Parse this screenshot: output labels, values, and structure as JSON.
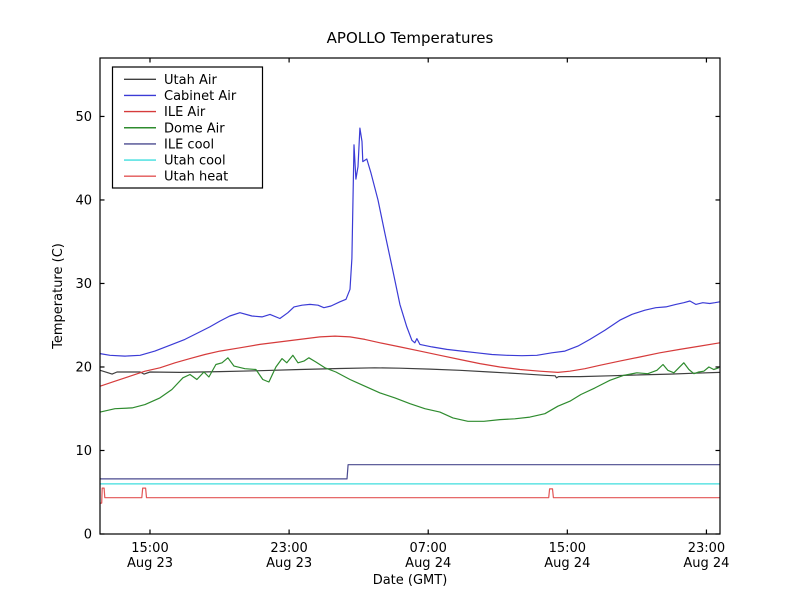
{
  "chart_data": {
    "type": "line",
    "title": "APOLLO Temperatures",
    "xlabel": "Date (GMT)",
    "ylabel": "Temperature (C)",
    "ylim": [
      0,
      57
    ],
    "xlim_hours": [
      12.125,
      47.78
    ],
    "x_unit": "hours since Aug 23 00:00 GMT",
    "grid": false,
    "legend_position": "upper left",
    "y_ticks": [
      {
        "value": 0,
        "label": "0"
      },
      {
        "value": 10,
        "label": "10"
      },
      {
        "value": 20,
        "label": "20"
      },
      {
        "value": 30,
        "label": "30"
      },
      {
        "value": 40,
        "label": "40"
      },
      {
        "value": 50,
        "label": "50"
      }
    ],
    "x_ticks": [
      {
        "hour": 15,
        "time": "15:00",
        "date": "Aug 23"
      },
      {
        "hour": 23,
        "time": "23:00",
        "date": "Aug 23"
      },
      {
        "hour": 31,
        "time": "07:00",
        "date": "Aug 24"
      },
      {
        "hour": 39,
        "time": "15:00",
        "date": "Aug 24"
      },
      {
        "hour": 47,
        "time": "23:00",
        "date": "Aug 24"
      }
    ],
    "series": [
      {
        "name": "Utah Air",
        "color": "#3f3f3f",
        "points": [
          [
            12.13,
            19.6
          ],
          [
            12.53,
            19.35
          ],
          [
            12.82,
            19.15
          ],
          [
            13.1,
            19.4
          ],
          [
            14.43,
            19.4
          ],
          [
            14.66,
            19.15
          ],
          [
            15.0,
            19.4
          ],
          [
            16.72,
            19.35
          ],
          [
            19.02,
            19.45
          ],
          [
            21.32,
            19.55
          ],
          [
            23.62,
            19.7
          ],
          [
            25.92,
            19.82
          ],
          [
            27.93,
            19.9
          ],
          [
            29.37,
            19.85
          ],
          [
            31.1,
            19.75
          ],
          [
            32.82,
            19.6
          ],
          [
            34.55,
            19.4
          ],
          [
            36.27,
            19.2
          ],
          [
            37.71,
            19.0
          ],
          [
            38.3,
            18.95
          ],
          [
            38.38,
            18.7
          ],
          [
            38.5,
            18.85
          ],
          [
            39.73,
            18.85
          ],
          [
            41.45,
            18.95
          ],
          [
            43.17,
            19.05
          ],
          [
            44.9,
            19.15
          ],
          [
            46.33,
            19.25
          ],
          [
            47.77,
            19.35
          ]
        ]
      },
      {
        "name": "Cabinet Air",
        "color": "#3b3bd6",
        "points": [
          [
            12.13,
            21.6
          ],
          [
            12.7,
            21.4
          ],
          [
            13.56,
            21.3
          ],
          [
            14.43,
            21.4
          ],
          [
            15.28,
            21.9
          ],
          [
            16.14,
            22.6
          ],
          [
            17.01,
            23.3
          ],
          [
            17.87,
            24.2
          ],
          [
            18.44,
            24.8
          ],
          [
            19.02,
            25.5
          ],
          [
            19.59,
            26.1
          ],
          [
            20.17,
            26.5
          ],
          [
            20.86,
            26.1
          ],
          [
            21.44,
            26.0
          ],
          [
            21.9,
            26.3
          ],
          [
            22.47,
            25.8
          ],
          [
            22.93,
            26.5
          ],
          [
            23.28,
            27.2
          ],
          [
            23.74,
            27.4
          ],
          [
            24.2,
            27.5
          ],
          [
            24.66,
            27.4
          ],
          [
            25.0,
            27.1
          ],
          [
            25.41,
            27.3
          ],
          [
            25.92,
            27.8
          ],
          [
            26.27,
            28.1
          ],
          [
            26.5,
            29.3
          ],
          [
            26.61,
            33.0
          ],
          [
            26.73,
            46.6
          ],
          [
            26.84,
            42.5
          ],
          [
            26.96,
            44.0
          ],
          [
            27.07,
            48.6
          ],
          [
            27.19,
            47.0
          ],
          [
            27.24,
            44.6
          ],
          [
            27.47,
            44.9
          ],
          [
            27.7,
            43.3
          ],
          [
            28.11,
            40.0
          ],
          [
            28.51,
            36.0
          ],
          [
            28.97,
            31.5
          ],
          [
            29.37,
            27.5
          ],
          [
            29.77,
            24.8
          ],
          [
            30.06,
            23.2
          ],
          [
            30.23,
            22.9
          ],
          [
            30.35,
            23.4
          ],
          [
            30.52,
            22.7
          ],
          [
            31.21,
            22.4
          ],
          [
            32.07,
            22.1
          ],
          [
            32.94,
            21.9
          ],
          [
            33.8,
            21.7
          ],
          [
            34.66,
            21.5
          ],
          [
            35.52,
            21.4
          ],
          [
            36.39,
            21.35
          ],
          [
            37.25,
            21.4
          ],
          [
            38.11,
            21.7
          ],
          [
            38.86,
            21.9
          ],
          [
            39.61,
            22.5
          ],
          [
            40.3,
            23.3
          ],
          [
            41.16,
            24.4
          ],
          [
            42.02,
            25.6
          ],
          [
            42.71,
            26.3
          ],
          [
            43.46,
            26.8
          ],
          [
            44.09,
            27.1
          ],
          [
            44.67,
            27.2
          ],
          [
            45.24,
            27.5
          ],
          [
            45.7,
            27.7
          ],
          [
            46.05,
            27.9
          ],
          [
            46.39,
            27.5
          ],
          [
            46.79,
            27.7
          ],
          [
            47.19,
            27.6
          ],
          [
            47.48,
            27.7
          ],
          [
            47.77,
            27.8
          ]
        ]
      },
      {
        "name": "ILE Air",
        "color": "#d63b3b",
        "points": [
          [
            12.13,
            17.7
          ],
          [
            12.99,
            18.3
          ],
          [
            13.85,
            18.9
          ],
          [
            14.71,
            19.5
          ],
          [
            15.57,
            19.9
          ],
          [
            16.44,
            20.5
          ],
          [
            17.3,
            21.0
          ],
          [
            18.16,
            21.5
          ],
          [
            19.02,
            21.9
          ],
          [
            20.17,
            22.3
          ],
          [
            21.32,
            22.7
          ],
          [
            22.47,
            23.0
          ],
          [
            23.62,
            23.3
          ],
          [
            24.77,
            23.6
          ],
          [
            25.64,
            23.7
          ],
          [
            26.5,
            23.6
          ],
          [
            27.36,
            23.3
          ],
          [
            28.23,
            22.9
          ],
          [
            29.37,
            22.4
          ],
          [
            30.52,
            21.9
          ],
          [
            31.67,
            21.4
          ],
          [
            32.82,
            20.9
          ],
          [
            33.97,
            20.4
          ],
          [
            35.12,
            20.0
          ],
          [
            36.27,
            19.7
          ],
          [
            37.42,
            19.5
          ],
          [
            38.46,
            19.35
          ],
          [
            39.15,
            19.5
          ],
          [
            40.01,
            19.8
          ],
          [
            40.87,
            20.2
          ],
          [
            42.02,
            20.7
          ],
          [
            43.17,
            21.2
          ],
          [
            44.32,
            21.7
          ],
          [
            45.47,
            22.1
          ],
          [
            46.62,
            22.5
          ],
          [
            47.77,
            22.9
          ]
        ]
      },
      {
        "name": "Dome Air",
        "color": "#2e8b2e",
        "points": [
          [
            12.13,
            14.6
          ],
          [
            12.99,
            15.0
          ],
          [
            13.97,
            15.1
          ],
          [
            14.71,
            15.5
          ],
          [
            15.57,
            16.3
          ],
          [
            16.26,
            17.3
          ],
          [
            16.89,
            18.7
          ],
          [
            17.3,
            19.1
          ],
          [
            17.7,
            18.5
          ],
          [
            18.1,
            19.4
          ],
          [
            18.39,
            18.8
          ],
          [
            18.79,
            20.3
          ],
          [
            19.14,
            20.5
          ],
          [
            19.48,
            21.1
          ],
          [
            19.83,
            20.1
          ],
          [
            20.46,
            19.8
          ],
          [
            21.09,
            19.7
          ],
          [
            21.49,
            18.5
          ],
          [
            21.84,
            18.2
          ],
          [
            22.24,
            20.0
          ],
          [
            22.59,
            21.0
          ],
          [
            22.87,
            20.5
          ],
          [
            23.22,
            21.4
          ],
          [
            23.51,
            20.5
          ],
          [
            23.85,
            20.7
          ],
          [
            24.14,
            21.1
          ],
          [
            24.54,
            20.6
          ],
          [
            25.06,
            19.9
          ],
          [
            25.69,
            19.4
          ],
          [
            26.5,
            18.5
          ],
          [
            27.36,
            17.7
          ],
          [
            28.23,
            16.9
          ],
          [
            29.09,
            16.3
          ],
          [
            29.95,
            15.6
          ],
          [
            30.81,
            15.0
          ],
          [
            31.67,
            14.6
          ],
          [
            32.42,
            13.9
          ],
          [
            33.28,
            13.5
          ],
          [
            34.2,
            13.5
          ],
          [
            35.12,
            13.7
          ],
          [
            35.98,
            13.8
          ],
          [
            36.85,
            14.0
          ],
          [
            37.71,
            14.4
          ],
          [
            38.46,
            15.3
          ],
          [
            39.15,
            15.9
          ],
          [
            39.78,
            16.7
          ],
          [
            40.59,
            17.5
          ],
          [
            41.45,
            18.4
          ],
          [
            42.25,
            19.0
          ],
          [
            43.0,
            19.3
          ],
          [
            43.63,
            19.2
          ],
          [
            44.15,
            19.6
          ],
          [
            44.5,
            20.3
          ],
          [
            44.78,
            19.6
          ],
          [
            45.13,
            19.3
          ],
          [
            45.41,
            19.9
          ],
          [
            45.7,
            20.5
          ],
          [
            45.99,
            19.7
          ],
          [
            46.28,
            19.2
          ],
          [
            46.56,
            19.4
          ],
          [
            46.85,
            19.5
          ],
          [
            47.14,
            20.0
          ],
          [
            47.42,
            19.7
          ],
          [
            47.71,
            19.9
          ]
        ]
      },
      {
        "name": "ILE cool",
        "color": "#4a4a8f",
        "points": [
          [
            12.13,
            6.6
          ],
          [
            26.33,
            6.6
          ],
          [
            26.39,
            8.3
          ],
          [
            47.77,
            8.3
          ]
        ]
      },
      {
        "name": "Utah cool",
        "color": "#3fdede",
        "points": [
          [
            12.13,
            6.0
          ],
          [
            47.77,
            6.0
          ]
        ]
      },
      {
        "name": "Utah heat",
        "color": "#e25555",
        "points": [
          [
            12.13,
            3.7
          ],
          [
            12.22,
            3.7
          ],
          [
            12.25,
            5.5
          ],
          [
            12.36,
            5.5
          ],
          [
            12.4,
            4.35
          ],
          [
            14.53,
            4.35
          ],
          [
            14.58,
            5.5
          ],
          [
            14.75,
            5.5
          ],
          [
            14.8,
            4.35
          ],
          [
            37.93,
            4.35
          ],
          [
            37.98,
            5.4
          ],
          [
            38.15,
            5.4
          ],
          [
            38.2,
            4.35
          ],
          [
            47.77,
            4.35
          ]
        ]
      }
    ]
  }
}
